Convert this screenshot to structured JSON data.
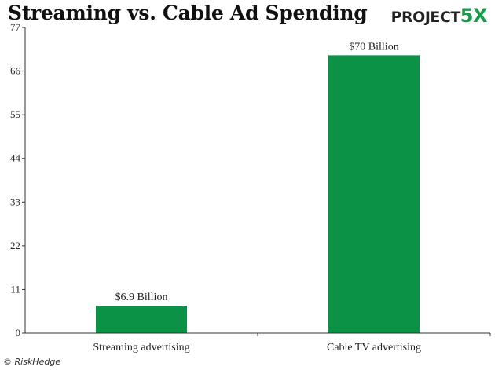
{
  "header": {
    "logo_text": "PROJECT",
    "logo_accent": "5X"
  },
  "footer": {
    "copyright": "© RiskHedge"
  },
  "chart_data": {
    "type": "bar",
    "title": "Streaming vs. Cable Ad Spending",
    "categories": [
      "Streaming advertising",
      "Cable TV advertising"
    ],
    "values": [
      6.9,
      70
    ],
    "data_labels": [
      "$6.9 Billion",
      "$70 Billion"
    ],
    "yticks": [
      0,
      11,
      22,
      33,
      44,
      55,
      66,
      77
    ],
    "ylim": [
      0,
      77
    ],
    "xlabel": "",
    "ylabel": "",
    "grid": false,
    "bar_color": "#0c9247"
  }
}
